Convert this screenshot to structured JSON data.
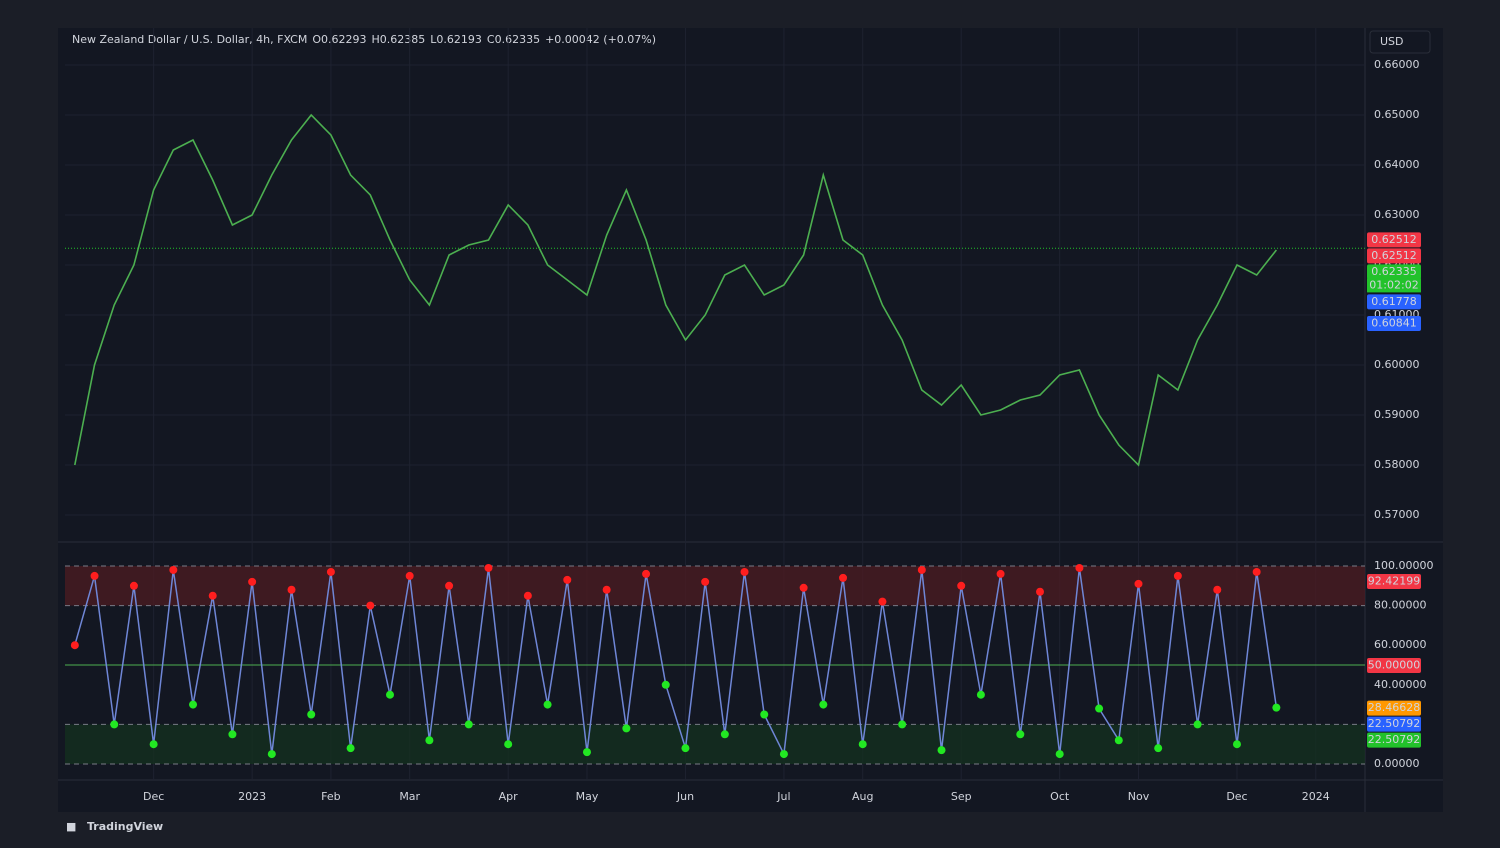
{
  "header": {
    "items": [
      {
        "text": "New Zealand Dollar / U.S. Dollar, 4h, FXCM",
        "color": "#d1d4dc"
      },
      {
        "text": "O0.62293",
        "color": "#3dd13d"
      },
      {
        "text": "H0.62385",
        "color": "#3dd13d"
      },
      {
        "text": "L0.62193",
        "color": "#3dd13d"
      },
      {
        "text": "C0.62335",
        "color": "#3dd13d"
      },
      {
        "text": "+0.00042 (+0.07%)",
        "color": "#3dd13d"
      }
    ],
    "currency": "USD"
  },
  "footer": {
    "brand": "TradingView"
  },
  "chart_data": [
    {
      "type": "line",
      "categories": [
        null,
        null,
        null,
        null,
        "Dec",
        null,
        null,
        null,
        null,
        "2023",
        null,
        null,
        null,
        "Feb",
        null,
        null,
        null,
        "Mar",
        null,
        null,
        null,
        null,
        "Apr",
        null,
        null,
        null,
        "May",
        null,
        null,
        null,
        null,
        "Jun",
        null,
        null,
        null,
        null,
        "Jul",
        null,
        null,
        null,
        "Aug",
        null,
        null,
        null,
        null,
        "Sep",
        null,
        null,
        null,
        null,
        "Oct",
        null,
        null,
        null,
        "Nov",
        null,
        null,
        null,
        null,
        "Dec",
        null,
        null,
        null,
        "2024",
        null,
        null
      ],
      "series": [
        {
          "color": "#4caf50",
          "values": [
            0.58,
            0.6,
            0.612,
            0.62,
            0.635,
            0.643,
            0.645,
            0.637,
            0.628,
            0.63,
            0.638,
            0.645,
            0.65,
            0.646,
            0.638,
            0.634,
            0.625,
            0.617,
            0.612,
            0.622,
            0.624,
            0.625,
            0.632,
            0.628,
            0.62,
            0.617,
            0.614,
            0.626,
            0.635,
            0.625,
            0.612,
            0.605,
            0.61,
            0.618,
            0.62,
            0.614,
            0.616,
            0.622,
            0.638,
            0.625,
            0.622,
            0.612,
            0.605,
            0.595,
            0.592,
            0.596,
            0.59,
            0.591,
            0.593,
            0.594,
            0.598,
            0.599,
            0.59,
            0.584,
            0.58,
            0.598,
            0.595,
            0.605,
            0.612,
            0.62,
            0.618,
            0.623,
            null,
            null,
            null,
            null
          ]
        }
      ],
      "ylim": [
        0.565,
        0.665
      ],
      "yticks": [
        {
          "value": 0.57,
          "label": "0.57000"
        },
        {
          "value": 0.58,
          "label": "0.58000"
        },
        {
          "value": 0.59,
          "label": "0.59000"
        },
        {
          "value": 0.6,
          "label": "0.60000"
        },
        {
          "value": 0.61,
          "label": "0.61000"
        },
        {
          "value": 0.62,
          "label": "0.62000"
        },
        {
          "value": 0.63,
          "label": "0.63000"
        },
        {
          "value": 0.64,
          "label": "0.64000"
        },
        {
          "value": 0.65,
          "label": "0.65000"
        },
        {
          "value": 0.66,
          "label": "0.66000"
        }
      ],
      "grid": true,
      "current_price": 0.62335,
      "price_tags": [
        {
          "value": 0.62512,
          "label": "0.62512",
          "color": "#f23645"
        },
        {
          "value": 0.62512,
          "label": "0.62512",
          "color": "#f23645"
        },
        {
          "value": 0.62335,
          "label": "0.62335",
          "color": "#22c22b",
          "countdown": "01:02:02"
        },
        {
          "value": 0.61778,
          "label": "0.61778",
          "color": "#2962ff"
        },
        {
          "value": 0.60841,
          "label": "0.60841",
          "color": "#2962ff"
        }
      ]
    },
    {
      "type": "oscillator",
      "series": [
        {
          "color": "#6f86d6",
          "values": [
            60,
            95,
            20,
            90,
            10,
            98,
            30,
            85,
            15,
            92,
            5,
            88,
            25,
            97,
            8,
            80,
            35,
            95,
            12,
            90,
            20,
            99,
            10,
            85,
            30,
            93,
            6,
            88,
            18,
            96,
            40,
            8,
            92,
            15,
            97,
            25,
            5,
            89,
            30,
            94,
            10,
            82,
            20,
            98,
            7,
            90,
            35,
            96,
            15,
            87,
            5,
            99,
            28,
            12,
            91,
            8,
            95,
            20,
            88,
            10,
            97,
            28.46628,
            null,
            null,
            null,
            null
          ]
        }
      ],
      "ylim": [
        0,
        100
      ],
      "yticks": [
        {
          "value": 0,
          "label": "0.00000"
        },
        {
          "value": 40,
          "label": "40.00000"
        },
        {
          "value": 60,
          "label": "60.00000"
        },
        {
          "value": 80,
          "label": "80.00000"
        },
        {
          "value": 100,
          "label": "100.00000"
        }
      ],
      "bands": [
        {
          "from": 80,
          "to": 100,
          "color": "#4a1c22"
        },
        {
          "from": 0,
          "to": 20,
          "color": "#14301f"
        }
      ],
      "midline": 50,
      "high_dot_color": "#ff1e1e",
      "low_dot_color": "#22e822",
      "tags": [
        {
          "value": 92.42199,
          "label": "92.42199",
          "color": "#f23645"
        },
        {
          "value": 50,
          "label": "50.00000",
          "color": "#f23645"
        },
        {
          "value": 28.46628,
          "label": "28.46628",
          "color": "#ff9800"
        },
        {
          "value": 22.50792,
          "label": "22.50792",
          "color": "#2962ff"
        },
        {
          "value": 22.50792,
          "label": "22.50792",
          "color": "#22c22b"
        }
      ]
    }
  ]
}
